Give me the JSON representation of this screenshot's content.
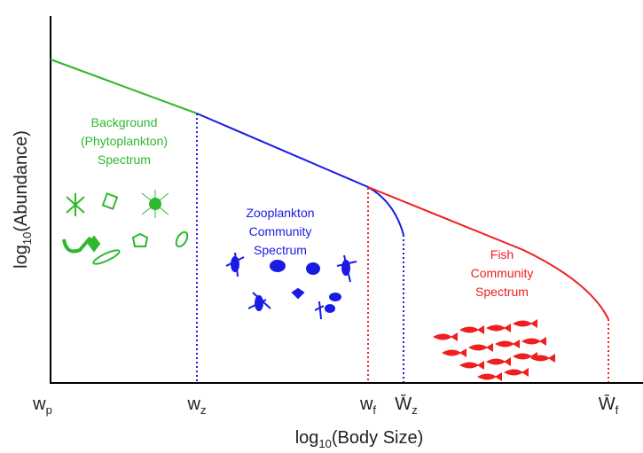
{
  "axes": {
    "y_label": {
      "prefix": "log",
      "sub": "10",
      "text": "(Abundance)"
    },
    "x_label": {
      "prefix": "log",
      "sub": "10",
      "text": "(Body Size)"
    },
    "x_ticks": [
      {
        "base": "w",
        "sub": "p"
      },
      {
        "base": "w",
        "sub": "z"
      },
      {
        "base": "w",
        "sub": "f"
      },
      {
        "base": "W̄",
        "sub": "z"
      },
      {
        "base": "W̄",
        "sub": "f"
      }
    ]
  },
  "regions": [
    {
      "lines": [
        "Background",
        "(Phytoplankton)",
        "Spectrum"
      ]
    },
    {
      "lines": [
        "Zooplankton",
        "Community",
        "Spectrum"
      ]
    },
    {
      "lines": [
        "Fish",
        "Community",
        "Spectrum"
      ]
    }
  ]
}
